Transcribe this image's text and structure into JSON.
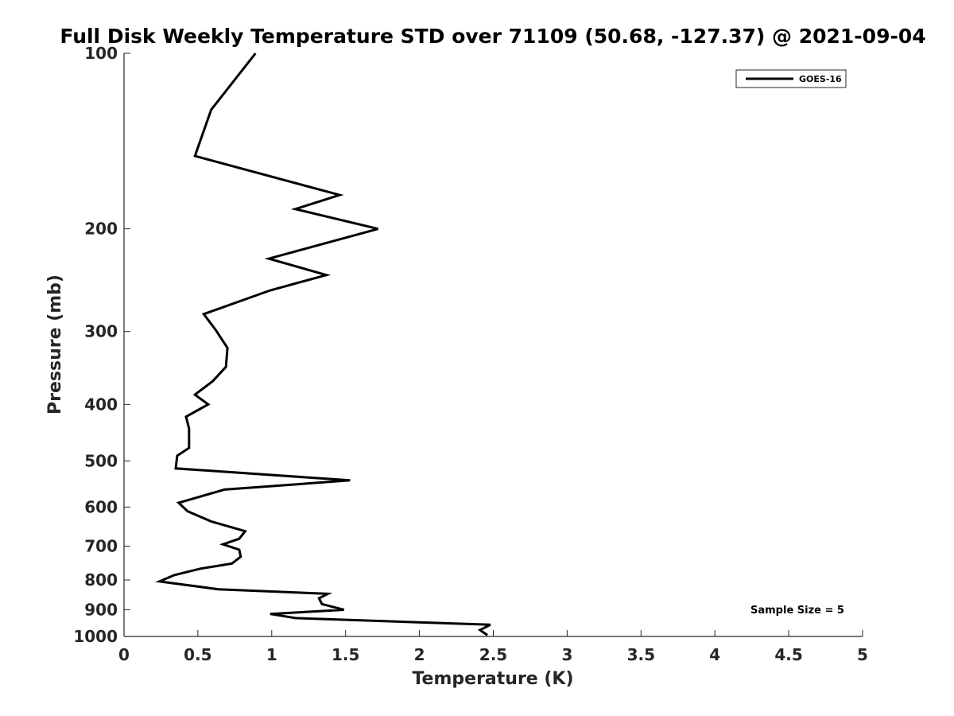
{
  "chart_data": {
    "type": "line",
    "title": "Full Disk Weekly Temperature STD over 71109 (50.68, -127.37) @ 2021-09-04",
    "xlabel": "Temperature (K)",
    "ylabel": "Pressure (mb)",
    "xlim": [
      0,
      5
    ],
    "ylim": [
      100,
      1000
    ],
    "y_scale": "log",
    "y_reversed": true,
    "x_ticks": [
      "0",
      "0.5",
      "1",
      "1.5",
      "2",
      "2.5",
      "3",
      "3.5",
      "4",
      "4.5",
      "5"
    ],
    "y_ticks": [
      "100",
      "200",
      "300",
      "400",
      "500",
      "600",
      "700",
      "800",
      "900",
      "1000"
    ],
    "grid": false,
    "legend_position": "top-right",
    "annotation": "Sample Size = 5",
    "series": [
      {
        "name": "GOES-16",
        "color": "#000000",
        "points": [
          [
            0.89,
            100
          ],
          [
            0.59,
            125
          ],
          [
            0.48,
            150
          ],
          [
            1.46,
            175
          ],
          [
            1.16,
            185
          ],
          [
            1.72,
            200
          ],
          [
            0.98,
            225
          ],
          [
            1.37,
            240
          ],
          [
            0.99,
            255
          ],
          [
            0.54,
            280
          ],
          [
            0.62,
            298
          ],
          [
            0.7,
            320
          ],
          [
            0.69,
            345
          ],
          [
            0.6,
            365
          ],
          [
            0.48,
            385
          ],
          [
            0.57,
            400
          ],
          [
            0.42,
            420
          ],
          [
            0.44,
            440
          ],
          [
            0.44,
            460
          ],
          [
            0.44,
            475
          ],
          [
            0.36,
            490
          ],
          [
            0.35,
            515
          ],
          [
            1.53,
            540
          ],
          [
            0.68,
            560
          ],
          [
            0.37,
            590
          ],
          [
            0.43,
            610
          ],
          [
            0.59,
            635
          ],
          [
            0.82,
            660
          ],
          [
            0.78,
            680
          ],
          [
            0.67,
            695
          ],
          [
            0.78,
            710
          ],
          [
            0.79,
            730
          ],
          [
            0.73,
            750
          ],
          [
            0.52,
            765
          ],
          [
            0.34,
            785
          ],
          [
            0.24,
            805
          ],
          [
            0.64,
            830
          ],
          [
            1.38,
            845
          ],
          [
            1.32,
            860
          ],
          [
            1.34,
            880
          ],
          [
            1.49,
            900
          ],
          [
            0.99,
            915
          ],
          [
            1.16,
            930
          ],
          [
            2.48,
            955
          ],
          [
            2.41,
            975
          ],
          [
            2.46,
            995
          ]
        ]
      }
    ]
  }
}
